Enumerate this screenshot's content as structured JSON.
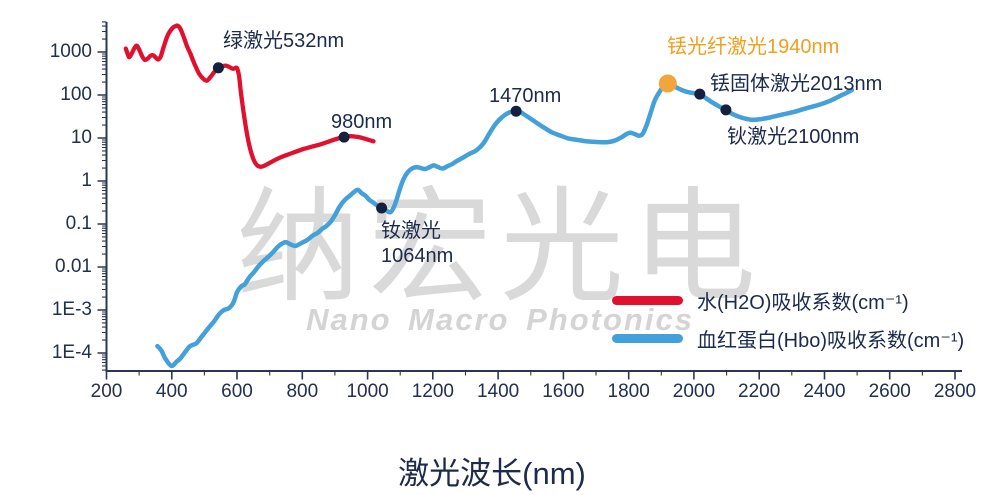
{
  "watermark": {
    "cn": "纳宏光电",
    "en": "Nano Macro Photonics"
  },
  "axes": {
    "x": {
      "title": "激光波长(nm)",
      "min": 200,
      "max": 2800,
      "ticks": [
        200,
        400,
        600,
        800,
        1000,
        1200,
        1400,
        1600,
        1800,
        2000,
        2200,
        2400,
        2600,
        2800
      ]
    },
    "y": {
      "scale": "log",
      "ticks": [
        {
          "label": "1000",
          "value": 1000
        },
        {
          "label": "100",
          "value": 100
        },
        {
          "label": "10",
          "value": 10
        },
        {
          "label": "1",
          "value": 1
        },
        {
          "label": "0.1",
          "value": 0.1
        },
        {
          "label": "0.01",
          "value": 0.01
        },
        {
          "label": "1E-3",
          "value": 0.001
        },
        {
          "label": "1E-4",
          "value": 0.0001
        }
      ]
    }
  },
  "colors": {
    "axis": "#2b3654",
    "label_navy": "#1c2a4e",
    "label_orange": "#f09f1e",
    "dot_navy": "#15203f",
    "dot_orange": "#f2a53a"
  },
  "chart_data": {
    "type": "line",
    "title": "",
    "xlabel": "激光波长(nm)",
    "ylabel": "吸收系数(cm⁻¹)",
    "x_range": [
      200,
      2800
    ],
    "y_scale": "log",
    "y_range": [
      0.0001,
      1000
    ],
    "grid": false,
    "legend_position": "bottom-right-inside",
    "series": [
      {
        "name": "水(H2O)吸收系数(cm⁻¹)",
        "color": "#e0112e",
        "width": 4.3,
        "points": [
          [
            259,
            1200
          ],
          [
            265,
            900
          ],
          [
            270,
            760
          ],
          [
            278,
            950
          ],
          [
            286,
            1250
          ],
          [
            293,
            1400
          ],
          [
            301,
            1100
          ],
          [
            309,
            800
          ],
          [
            317,
            660
          ],
          [
            326,
            700
          ],
          [
            335,
            820
          ],
          [
            343,
            840
          ],
          [
            351,
            740
          ],
          [
            358,
            670
          ],
          [
            366,
            780
          ],
          [
            375,
            1300
          ],
          [
            388,
            2500
          ],
          [
            402,
            3600
          ],
          [
            412,
            4000
          ],
          [
            418,
            4100
          ],
          [
            426,
            3500
          ],
          [
            436,
            2300
          ],
          [
            447,
            1350
          ],
          [
            458,
            880
          ],
          [
            470,
            520
          ],
          [
            483,
            320
          ],
          [
            495,
            245
          ],
          [
            507,
            215
          ],
          [
            519,
            265
          ],
          [
            530,
            340
          ],
          [
            543,
            430
          ],
          [
            556,
            470
          ],
          [
            567,
            480
          ],
          [
            577,
            445
          ],
          [
            586,
            408
          ],
          [
            593,
            418
          ],
          [
            600,
            420
          ],
          [
            606,
            280
          ],
          [
            612,
            110
          ],
          [
            619,
            45
          ],
          [
            626,
            20
          ],
          [
            634,
            9
          ],
          [
            642,
            5
          ],
          [
            652,
            3
          ],
          [
            662,
            2.3
          ],
          [
            674,
            2.15
          ],
          [
            690,
            2.4
          ],
          [
            710,
            2.9
          ],
          [
            732,
            3.5
          ],
          [
            755,
            4.1
          ],
          [
            780,
            4.8
          ],
          [
            805,
            5.6
          ],
          [
            830,
            6.3
          ],
          [
            855,
            7.1
          ],
          [
            878,
            8.1
          ],
          [
            900,
            9.3
          ],
          [
            915,
            10
          ],
          [
            928,
            10.5
          ],
          [
            945,
            11
          ],
          [
            962,
            10.8
          ],
          [
            980,
            10.2
          ],
          [
            1000,
            9.2
          ],
          [
            1018,
            8.4
          ]
        ]
      },
      {
        "name": "血红蛋白(Hbo)吸收系数(cm⁻¹)",
        "color": "#44a0d8",
        "width": 4.5,
        "points": [
          [
            356,
            0.000145
          ],
          [
            368,
            0.000115
          ],
          [
            380,
            7.5e-05
          ],
          [
            399,
            5e-05
          ],
          [
            415,
            6.3e-05
          ],
          [
            427,
            7.6e-05
          ],
          [
            443,
            0.00011
          ],
          [
            454,
            0.00014
          ],
          [
            465,
            0.000155
          ],
          [
            476,
            0.00017
          ],
          [
            490,
            0.00023
          ],
          [
            503,
            0.00031
          ],
          [
            517,
            0.00042
          ],
          [
            531,
            0.00056
          ],
          [
            545,
            0.0008
          ],
          [
            560,
            0.001
          ],
          [
            575,
            0.0011
          ],
          [
            589,
            0.0015
          ],
          [
            600,
            0.0026
          ],
          [
            612,
            0.0035
          ],
          [
            624,
            0.004
          ],
          [
            638,
            0.0058
          ],
          [
            652,
            0.0076
          ],
          [
            666,
            0.0105
          ],
          [
            680,
            0.0135
          ],
          [
            695,
            0.017
          ],
          [
            710,
            0.022
          ],
          [
            724,
            0.029
          ],
          [
            738,
            0.035
          ],
          [
            749,
            0.038
          ],
          [
            762,
            0.034
          ],
          [
            779,
            0.031
          ],
          [
            800,
            0.037
          ],
          [
            816,
            0.043
          ],
          [
            832,
            0.054
          ],
          [
            847,
            0.062
          ],
          [
            862,
            0.078
          ],
          [
            874,
            0.09
          ],
          [
            888,
            0.115
          ],
          [
            900,
            0.16
          ],
          [
            914,
            0.25
          ],
          [
            930,
            0.36
          ],
          [
            945,
            0.45
          ],
          [
            958,
            0.55
          ],
          [
            970,
            0.62
          ],
          [
            982,
            0.52
          ],
          [
            994,
            0.45
          ],
          [
            1006,
            0.36
          ],
          [
            1019,
            0.31
          ],
          [
            1032,
            0.26
          ],
          [
            1043,
            0.235
          ],
          [
            1056,
            0.21
          ],
          [
            1071,
            0.19
          ],
          [
            1085,
            0.3
          ],
          [
            1098,
            0.62
          ],
          [
            1110,
            1.1
          ],
          [
            1123,
            1.6
          ],
          [
            1136,
            1.95
          ],
          [
            1150,
            2.1
          ],
          [
            1163,
            2.0
          ],
          [
            1176,
            1.9
          ],
          [
            1190,
            2.1
          ],
          [
            1203,
            2.3
          ],
          [
            1216,
            2.1
          ],
          [
            1230,
            1.95
          ],
          [
            1244,
            2.2
          ],
          [
            1258,
            2.45
          ],
          [
            1273,
            2.9
          ],
          [
            1290,
            3.4
          ],
          [
            1310,
            4.2
          ],
          [
            1334,
            5.2
          ],
          [
            1355,
            7.5
          ],
          [
            1374,
            13
          ],
          [
            1392,
            21
          ],
          [
            1411,
            30
          ],
          [
            1430,
            38
          ],
          [
            1448,
            42
          ],
          [
            1462,
            42.5
          ],
          [
            1478,
            36
          ],
          [
            1497,
            29
          ],
          [
            1520,
            22
          ],
          [
            1543,
            17
          ],
          [
            1565,
            13.5
          ],
          [
            1589,
            11.5
          ],
          [
            1615,
            9.8
          ],
          [
            1644,
            9.0
          ],
          [
            1670,
            8.4
          ],
          [
            1696,
            8.1
          ],
          [
            1720,
            8.0
          ],
          [
            1742,
            8.1
          ],
          [
            1762,
            9.0
          ],
          [
            1779,
            10.5
          ],
          [
            1795,
            12.5
          ],
          [
            1806,
            13.2
          ],
          [
            1820,
            12.2
          ],
          [
            1832,
            11.3
          ],
          [
            1843,
            12.5
          ],
          [
            1855,
            20
          ],
          [
            1868,
            40
          ],
          [
            1880,
            75
          ],
          [
            1895,
            120
          ],
          [
            1908,
            165
          ],
          [
            1920,
            185
          ],
          [
            1935,
            168
          ],
          [
            1950,
            145
          ],
          [
            1966,
            128
          ],
          [
            1981,
            117
          ],
          [
            2000,
            110
          ],
          [
            2018,
            105
          ],
          [
            2036,
            85
          ],
          [
            2055,
            68
          ],
          [
            2076,
            55
          ],
          [
            2098,
            45
          ],
          [
            2116,
            37
          ],
          [
            2134,
            32
          ],
          [
            2155,
            28.5
          ],
          [
            2180,
            26.5
          ],
          [
            2205,
            27.5
          ],
          [
            2233,
            30
          ],
          [
            2270,
            35
          ],
          [
            2309,
            41
          ],
          [
            2348,
            50
          ],
          [
            2386,
            60
          ],
          [
            2415,
            72
          ],
          [
            2441,
            90
          ],
          [
            2465,
            110
          ],
          [
            2484,
            131
          ]
        ]
      }
    ],
    "annotations": [
      {
        "name": "green-laser-532",
        "label": "绿激光532nm",
        "x": 543,
        "y": 430,
        "dot": "navy",
        "color": "navy",
        "lx": 223,
        "ly": 29
      },
      {
        "name": "laser-980",
        "label": "980nm",
        "x": 928,
        "y": 10.5,
        "dot": "navy",
        "color": "navy",
        "lx": 331,
        "ly": 110
      },
      {
        "name": "nd-laser-1064",
        "label": "钕激光\n1064nm",
        "x": 1043,
        "y": 0.235,
        "dot": "navy",
        "color": "navy",
        "lx": 381,
        "ly": 219
      },
      {
        "name": "laser-1470",
        "label": "1470nm",
        "x": 1455,
        "y": 42,
        "dot": "navy",
        "color": "navy",
        "lx": 489,
        "ly": 84
      },
      {
        "name": "tm-fiber-laser-1940",
        "label": "铥光纤激光1940nm",
        "x": 1920,
        "y": 185,
        "dot": "orange",
        "color": "orange",
        "lx": 667,
        "ly": 35
      },
      {
        "name": "tm-solid-laser-2013",
        "label": "铥固体激光2013nm",
        "x": 2018,
        "y": 105,
        "dot": "navy",
        "color": "navy",
        "lx": 710,
        "ly": 72
      },
      {
        "name": "ho-laser-2100",
        "label": "钬激光2100nm",
        "x": 2098,
        "y": 45,
        "dot": "navy",
        "color": "navy",
        "lx": 727,
        "ly": 125
      }
    ]
  }
}
